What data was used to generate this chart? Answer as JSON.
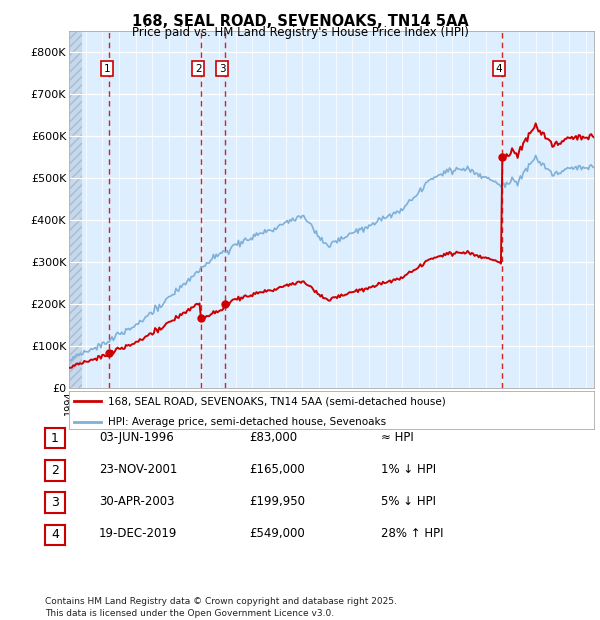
{
  "title_line1": "168, SEAL ROAD, SEVENOAKS, TN14 5AA",
  "title_line2": "Price paid vs. HM Land Registry's House Price Index (HPI)",
  "bg_color": "#ddeeff",
  "grid_color": "#ffffff",
  "sale_dates": [
    1996.42,
    2001.9,
    2003.33,
    2019.96
  ],
  "sale_prices": [
    83000,
    165000,
    199950,
    549000
  ],
  "sale_labels": [
    "1",
    "2",
    "3",
    "4"
  ],
  "red_line_color": "#cc0000",
  "blue_line_color": "#7fb0d8",
  "dashed_vline_color": "#cc0000",
  "legend_entries": [
    "168, SEAL ROAD, SEVENOAKS, TN14 5AA (semi-detached house)",
    "HPI: Average price, semi-detached house, Sevenoaks"
  ],
  "table_rows": [
    [
      "1",
      "03-JUN-1996",
      "£83,000",
      "≈ HPI"
    ],
    [
      "2",
      "23-NOV-2001",
      "£165,000",
      "1% ↓ HPI"
    ],
    [
      "3",
      "30-APR-2003",
      "£199,950",
      "5% ↓ HPI"
    ],
    [
      "4",
      "19-DEC-2019",
      "£549,000",
      "28% ↑ HPI"
    ]
  ],
  "footer": "Contains HM Land Registry data © Crown copyright and database right 2025.\nThis data is licensed under the Open Government Licence v3.0.",
  "ylim": [
    0,
    850000
  ],
  "yticks": [
    0,
    100000,
    200000,
    300000,
    400000,
    500000,
    600000,
    700000,
    800000
  ],
  "ytick_labels": [
    "£0",
    "£100K",
    "£200K",
    "£300K",
    "£400K",
    "£500K",
    "£600K",
    "£700K",
    "£800K"
  ],
  "xmin": 1994.0,
  "xmax": 2025.5,
  "hatch_end": 1994.75
}
